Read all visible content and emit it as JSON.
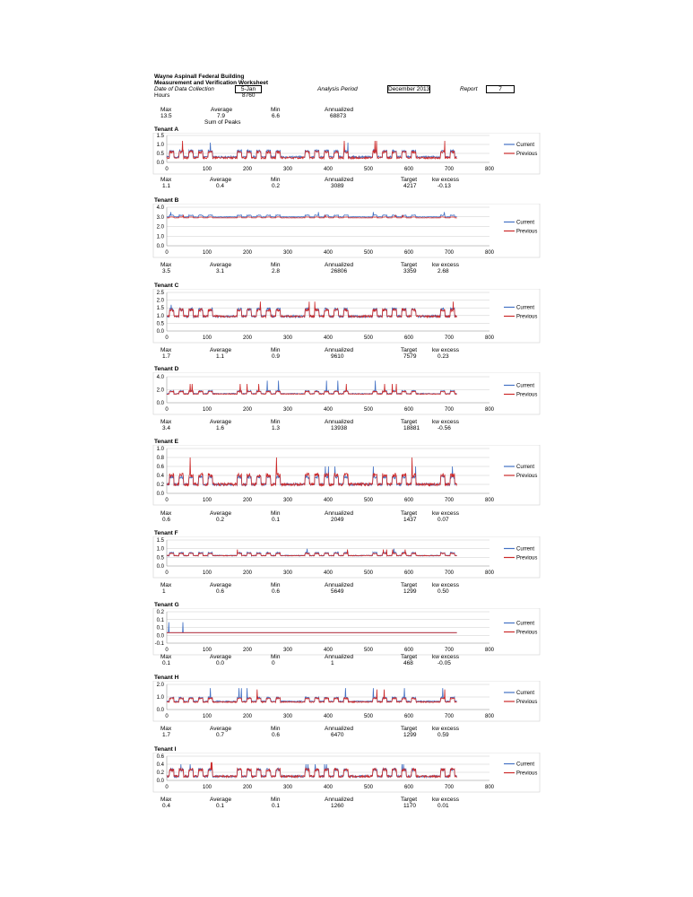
{
  "header": {
    "title_line1": "Wayne Aspinall Federal Building",
    "title_line2": "Measurement and Verification Worksheet",
    "date_label": "Date of Data Collection",
    "date_value": "5-Jan",
    "analysis_label": "Analysis Period",
    "analysis_value": "December 2013",
    "report_label": "Report",
    "report_value": "7",
    "hours_label": "Hours",
    "hours_value": "8760"
  },
  "building_summary": {
    "max_label": "Max",
    "max": "13.5",
    "avg_label": "Average",
    "avg": "7.9",
    "min_label": "Min",
    "min": "6.6",
    "ann_label": "Annualized",
    "ann": "68873",
    "sum_of_peaks": "Sum of Peaks"
  },
  "stat_labels": {
    "max": "Max",
    "avg": "Average",
    "min": "Min",
    "ann": "Annualized",
    "target": "Target",
    "excess": "kw excess"
  },
  "legend": {
    "current": "Current",
    "previous": "Previous"
  },
  "colors": {
    "current": "#4472c4",
    "previous": "#cc2a2a",
    "grid": "#cccccc"
  },
  "tenants": [
    {
      "name": "Tenant A",
      "stats": {
        "max": "1.1",
        "avg": "0.4",
        "min": "0.2",
        "ann": "3089",
        "target": "4217",
        "excess": "-0.13"
      }
    },
    {
      "name": "Tenant B",
      "stats": {
        "max": "3.5",
        "avg": "3.1",
        "min": "2.8",
        "ann": "26806",
        "target": "3359",
        "excess": "2.68"
      }
    },
    {
      "name": "Tenant C",
      "stats": {
        "max": "1.7",
        "avg": "1.1",
        "min": "0.9",
        "ann": "9610",
        "target": "7579",
        "excess": "0.23"
      }
    },
    {
      "name": "Tenant D",
      "stats": {
        "max": "3.4",
        "avg": "1.6",
        "min": "1.3",
        "ann": "13938",
        "target": "18881",
        "excess": "-0.56"
      }
    },
    {
      "name": "Tenant E",
      "stats": {
        "max": "0.6",
        "avg": "0.2",
        "min": "0.1",
        "ann": "2049",
        "target": "1437",
        "excess": "0.07"
      }
    },
    {
      "name": "Tenant F",
      "stats": {
        "max": "1",
        "avg": "0.6",
        "min": "0.6",
        "ann": "5649",
        "target": "1299",
        "excess": "0.50"
      }
    },
    {
      "name": "Tenant G",
      "stats": {
        "max": "0.1",
        "avg": "0.0",
        "min": "0",
        "ann": "1",
        "target": "468",
        "excess": "-0.05"
      }
    },
    {
      "name": "Tenant H",
      "stats": {
        "max": "1.7",
        "avg": "0.7",
        "min": "0.6",
        "ann": "6470",
        "target": "1299",
        "excess": "0.59"
      }
    },
    {
      "name": "Tenant I",
      "stats": {
        "max": "0.4",
        "avg": "0.1",
        "min": "0.1",
        "ann": "1260",
        "target": "1170",
        "excess": "0.01"
      }
    }
  ],
  "chart_data": [
    {
      "type": "line",
      "title": "Tenant A",
      "xlim": [
        0,
        800
      ],
      "x_ticks": [
        "0",
        "100",
        "200",
        "300",
        "400",
        "500",
        "600",
        "700",
        "800"
      ],
      "y_ticks": [
        "1.5",
        "1.0",
        "0.5",
        "0.0"
      ],
      "ylim": [
        0,
        1.5
      ],
      "n_points": 720,
      "series": [
        {
          "name": "Current",
          "base": 0.3,
          "peak": 0.7,
          "spike": 1.1
        },
        {
          "name": "Previous",
          "base": 0.25,
          "peak": 0.65,
          "spike": 1.2
        }
      ]
    },
    {
      "type": "line",
      "title": "Tenant B",
      "xlim": [
        0,
        800
      ],
      "x_ticks": [
        "0",
        "100",
        "200",
        "300",
        "400",
        "500",
        "600",
        "700",
        "800"
      ],
      "y_ticks": [
        "4.0",
        "3.0",
        "2.0",
        "1.0",
        "0.0"
      ],
      "ylim": [
        0,
        4
      ],
      "n_points": 720,
      "series": [
        {
          "name": "Current",
          "base": 3.0,
          "peak": 3.2,
          "spike": 3.5
        },
        {
          "name": "Previous",
          "base": 2.9,
          "peak": 3.0,
          "spike": 3.2
        }
      ]
    },
    {
      "type": "line",
      "title": "Tenant C",
      "xlim": [
        0,
        800
      ],
      "x_ticks": [
        "0",
        "100",
        "200",
        "300",
        "400",
        "500",
        "600",
        "700",
        "800"
      ],
      "y_ticks": [
        "2.5",
        "2.0",
        "1.5",
        "1.0",
        "0.5",
        "0.0"
      ],
      "ylim": [
        0,
        2.5
      ],
      "n_points": 720,
      "series": [
        {
          "name": "Current",
          "base": 0.95,
          "peak": 1.5,
          "spike": 1.7
        },
        {
          "name": "Previous",
          "base": 0.95,
          "peak": 1.45,
          "spike": 1.9
        }
      ]
    },
    {
      "type": "line",
      "title": "Tenant D",
      "xlim": [
        0,
        800
      ],
      "x_ticks": [
        "0",
        "100",
        "200",
        "300",
        "400",
        "500",
        "600",
        "700",
        "800"
      ],
      "y_ticks": [
        "4.0",
        "2.0",
        "0.0"
      ],
      "ylim": [
        0,
        4
      ],
      "n_points": 720,
      "series": [
        {
          "name": "Current",
          "base": 1.4,
          "peak": 1.9,
          "spike": 3.4
        },
        {
          "name": "Previous",
          "base": 1.35,
          "peak": 1.8,
          "spike": 2.9
        }
      ]
    },
    {
      "type": "line",
      "title": "Tenant E",
      "xlim": [
        0,
        800
      ],
      "x_ticks": [
        "0",
        "100",
        "200",
        "300",
        "400",
        "500",
        "600",
        "700",
        "800"
      ],
      "y_ticks": [
        "1.0",
        "0.8",
        "0.6",
        "0.4",
        "0.2",
        "0.0"
      ],
      "ylim": [
        0,
        1.0
      ],
      "n_points": 720,
      "series": [
        {
          "name": "Current",
          "base": 0.2,
          "peak": 0.4,
          "spike": 0.6
        },
        {
          "name": "Previous",
          "base": 0.2,
          "peak": 0.45,
          "spike": 0.8
        }
      ]
    },
    {
      "type": "line",
      "title": "Tenant F",
      "xlim": [
        0,
        800
      ],
      "x_ticks": [
        "0",
        "100",
        "200",
        "300",
        "400",
        "500",
        "600",
        "700",
        "800"
      ],
      "y_ticks": [
        "1.5",
        "1.0",
        "0.5",
        "0.0"
      ],
      "ylim": [
        0,
        1.5
      ],
      "n_points": 720,
      "series": [
        {
          "name": "Current",
          "base": 0.6,
          "peak": 0.8,
          "spike": 1.0
        },
        {
          "name": "Previous",
          "base": 0.6,
          "peak": 0.75,
          "spike": 0.95
        }
      ]
    },
    {
      "type": "line",
      "title": "Tenant G",
      "xlim": [
        0,
        800
      ],
      "x_ticks": [
        "0",
        "100",
        "200",
        "300",
        "400",
        "500",
        "600",
        "700",
        "800"
      ],
      "y_ticks": [
        "0.2",
        "0.1",
        "0.1",
        "0.0",
        "-0.1"
      ],
      "ylim": [
        -0.1,
        0.2
      ],
      "n_points": 720,
      "series": [
        {
          "name": "Current",
          "base": 0.0,
          "peak": 0.0,
          "spike": 0.1
        },
        {
          "name": "Previous",
          "base": 0.0,
          "peak": 0.0,
          "spike": 0.0
        }
      ]
    },
    {
      "type": "line",
      "title": "Tenant H",
      "xlim": [
        0,
        800
      ],
      "x_ticks": [
        "0",
        "100",
        "200",
        "300",
        "400",
        "500",
        "600",
        "700",
        "800"
      ],
      "y_ticks": [
        "2.0",
        "1.0",
        "0.0"
      ],
      "ylim": [
        0,
        2
      ],
      "n_points": 720,
      "series": [
        {
          "name": "Current",
          "base": 0.65,
          "peak": 1.0,
          "spike": 1.7
        },
        {
          "name": "Previous",
          "base": 0.6,
          "peak": 0.95,
          "spike": 1.6
        }
      ]
    },
    {
      "type": "line",
      "title": "Tenant I",
      "xlim": [
        0,
        800
      ],
      "x_ticks": [
        "0",
        "100",
        "200",
        "300",
        "400",
        "500",
        "600",
        "700",
        "800"
      ],
      "y_ticks": [
        "0.6",
        "0.4",
        "0.2",
        "0.0"
      ],
      "ylim": [
        0,
        0.6
      ],
      "n_points": 720,
      "series": [
        {
          "name": "Current",
          "base": 0.1,
          "peak": 0.3,
          "spike": 0.4
        },
        {
          "name": "Previous",
          "base": 0.1,
          "peak": 0.3,
          "spike": 0.45
        }
      ]
    }
  ]
}
